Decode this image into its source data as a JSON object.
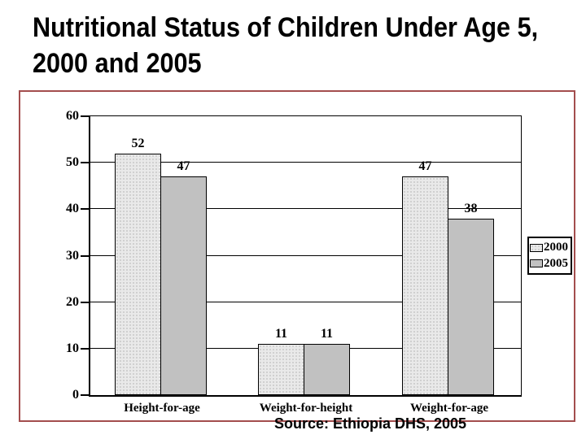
{
  "header": {
    "title_lines": [
      "Nutritional Status of Children Under Age 5,",
      "2000 and 2005"
    ]
  },
  "chart_data": {
    "type": "bar",
    "title": "",
    "xlabel": "",
    "ylabel": "",
    "categories": [
      "Height-for-age",
      "Weight-for-height",
      "Weight-for-age"
    ],
    "series": [
      {
        "name": "2000",
        "values": [
          52,
          11,
          47
        ]
      },
      {
        "name": "2005",
        "values": [
          47,
          11,
          38
        ]
      }
    ],
    "ylim": [
      0,
      60
    ],
    "ytick_step": 10,
    "yticks": [
      0,
      10,
      20,
      30,
      40,
      50,
      60
    ],
    "grid": true,
    "legend_position": "right",
    "legend_entries": [
      "2000",
      "2005"
    ],
    "data_labels_shown": true,
    "colors": {
      "series_2000_fill": "#e9e9e9",
      "series_2000_dot": "#c8c8c8",
      "series_2005_fill": "#c1c1c1",
      "bar_border": "#000000",
      "axis": "#000000"
    }
  },
  "frame": {
    "border_color": "#a34d4d"
  },
  "source_note": {
    "text": "Source: Ethiopia DHS, 2005"
  }
}
